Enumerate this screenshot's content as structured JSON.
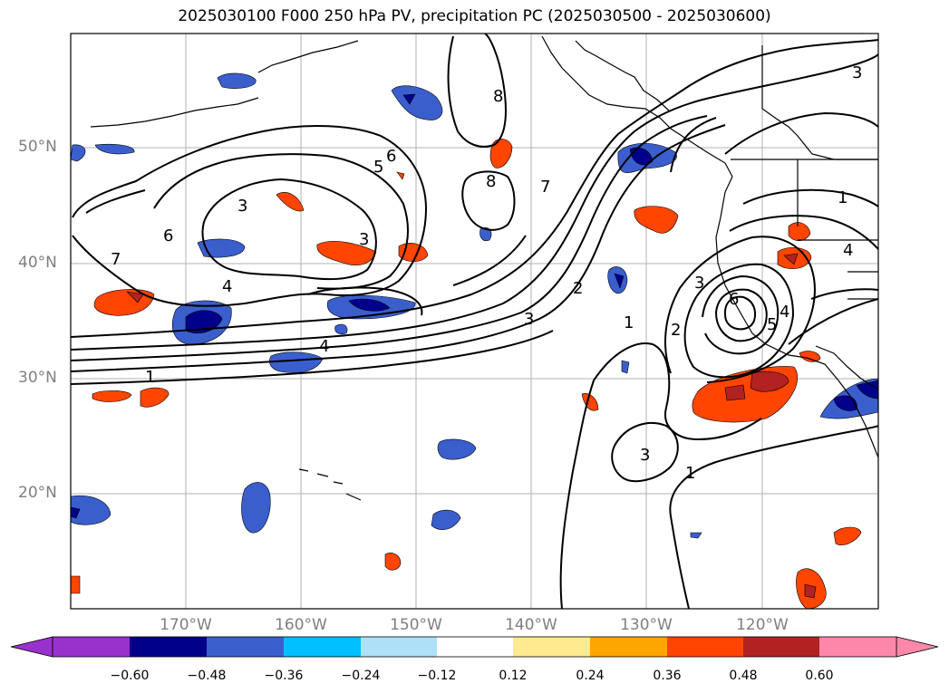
{
  "title": "2025030100 F000 250 hPa PV, precipitation PC (2025030500 - 2025030600)",
  "lat_labels": [
    "50°N",
    "40°N",
    "30°N",
    "20°N"
  ],
  "lon_labels": [
    "170°W",
    "160°W",
    "150°W",
    "140°W",
    "130°W",
    "120°W"
  ],
  "colorbar": {
    "colors": [
      "#9932CC",
      "#00008B",
      "#3A5FCD",
      "#00BFFF",
      "#ADE1F8",
      "#FFFFFF",
      "#FFEB8F",
      "#FFA500",
      "#FF4500",
      "#B22222",
      "#FF88AA"
    ],
    "ticks": [
      "−0.60",
      "−0.48",
      "−0.36",
      "−0.24",
      "−0.12",
      "0.12",
      "0.24",
      "0.36",
      "0.48",
      "0.60"
    ]
  },
  "contour_labels": [
    "3",
    "5",
    "6",
    "7",
    "6",
    "4",
    "3",
    "8",
    "8",
    "7",
    "2",
    "3",
    "4",
    "1",
    "1",
    "2",
    "3",
    "6",
    "5",
    "4",
    "1",
    "3",
    "1",
    "4",
    "3"
  ]
}
